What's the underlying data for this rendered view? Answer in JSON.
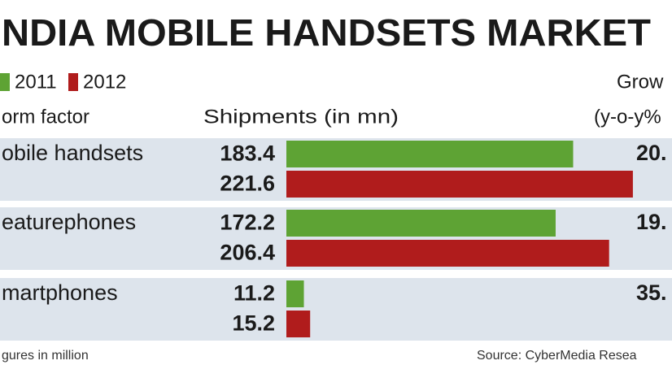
{
  "chart_data": {
    "type": "bar",
    "title": "NDIA MOBILE HANDSETS MARKET",
    "category_header": "orm factor",
    "value_header": "Shipments (in mn)",
    "growth_header": [
      "Grow",
      "(y-o-y%"
    ],
    "categories": [
      "obile handsets",
      "eaturephones",
      "martphones"
    ],
    "series": [
      {
        "name": "2011",
        "color": "#5ea334",
        "values": [
          183.4,
          172.2,
          11.2
        ]
      },
      {
        "name": "2012",
        "color": "#b01c1c",
        "values": [
          221.6,
          206.4,
          15.2
        ]
      }
    ],
    "growth_labels": [
      "20.",
      "19.",
      "35."
    ],
    "footnote": "gures in million",
    "source": "Source: CyberMedia Resea"
  }
}
